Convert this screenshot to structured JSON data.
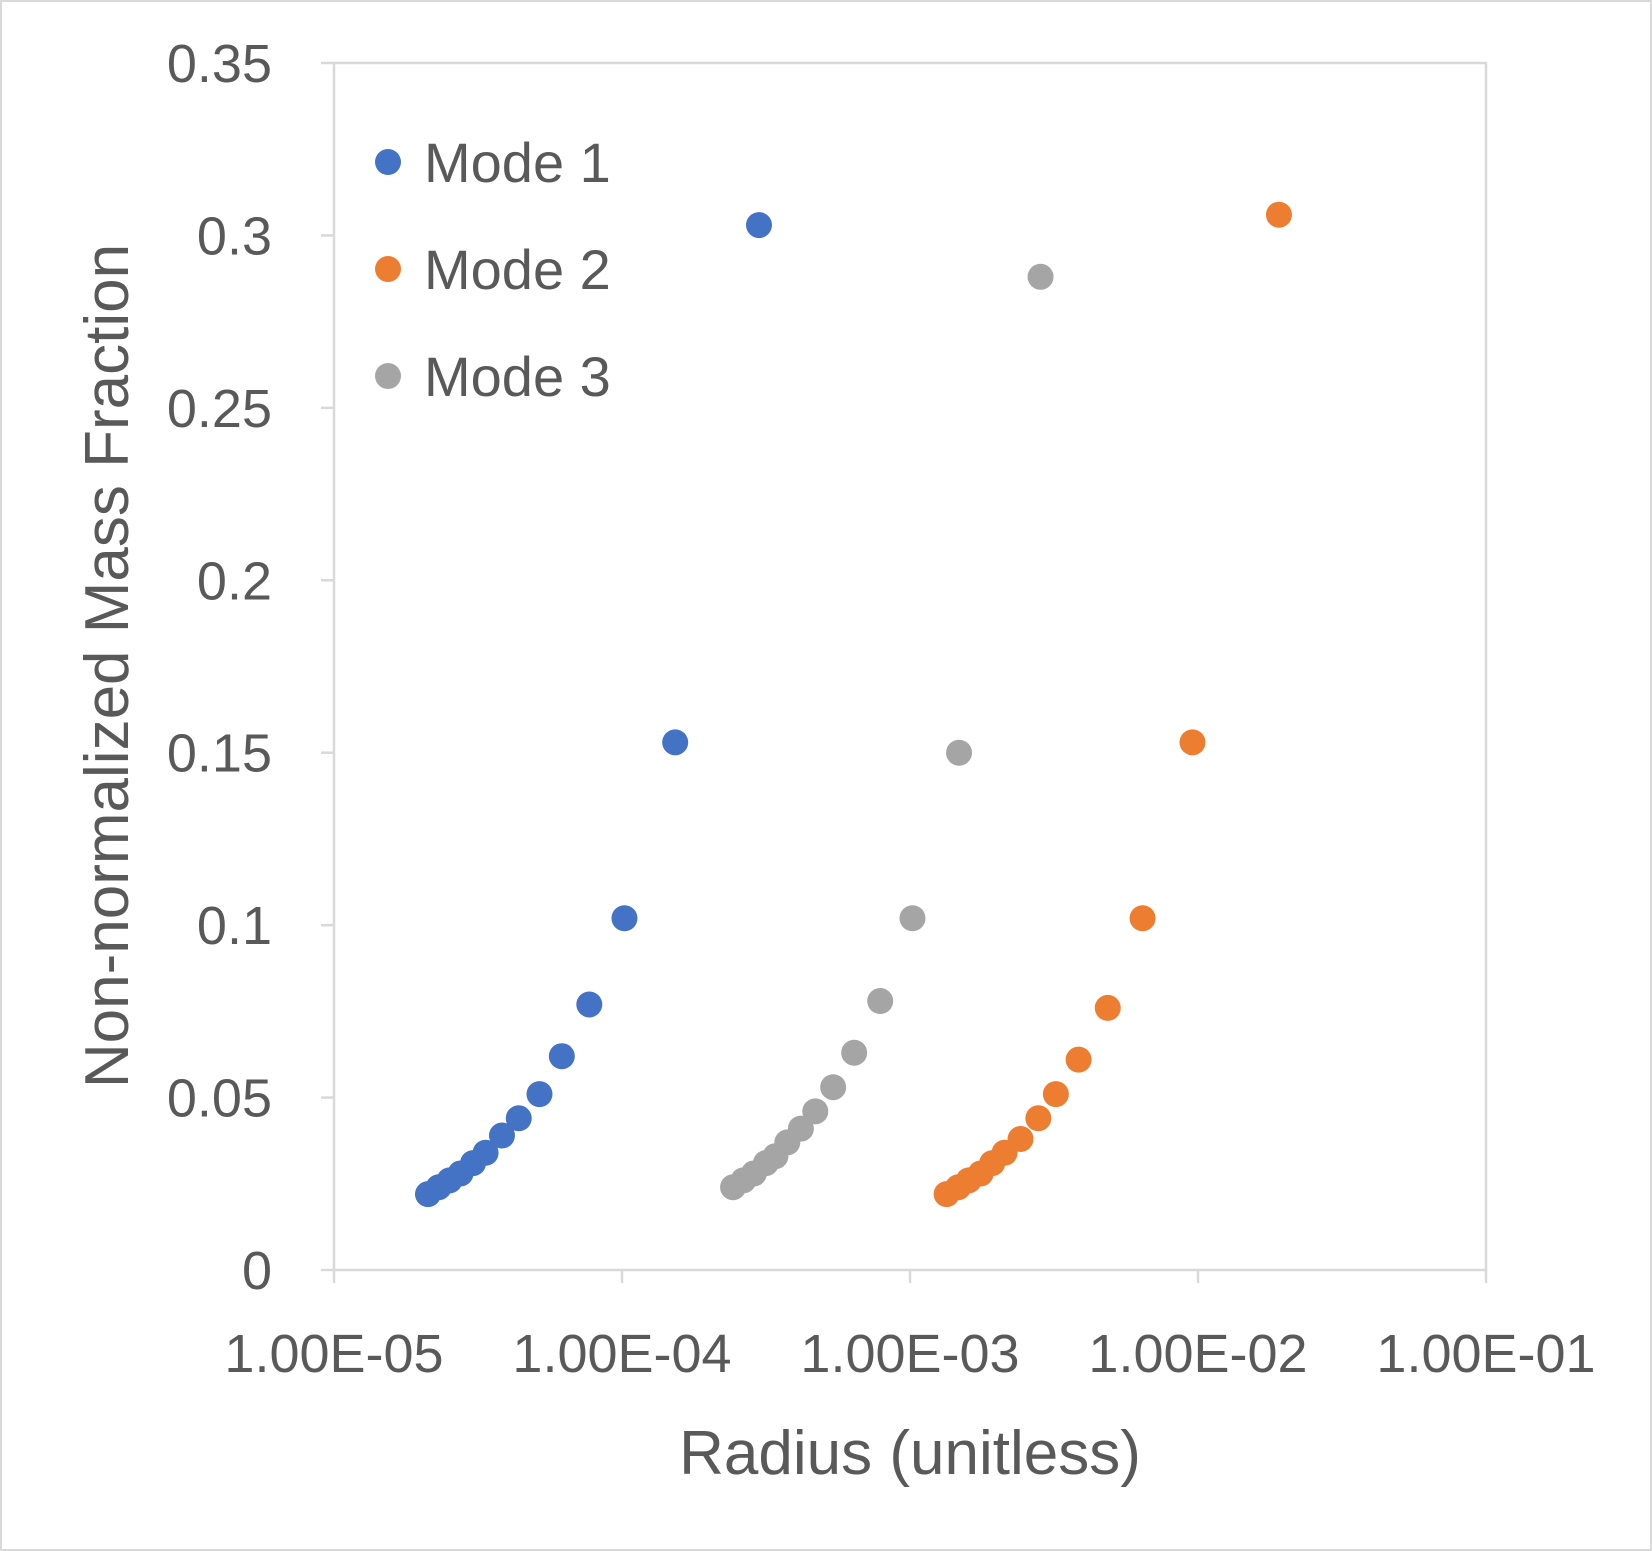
{
  "chart_data": {
    "type": "scatter",
    "xlabel": "Radius (unitless)",
    "ylabel": "Non-normalized Mass Fraction",
    "x_scale": "log",
    "xlim": [
      1e-05,
      0.1
    ],
    "ylim": [
      0,
      0.35
    ],
    "x_ticks": [
      1e-05,
      0.0001,
      0.001,
      0.01,
      0.1
    ],
    "x_tick_labels": [
      "1.00E-05",
      "1.00E-04",
      "1.00E-03",
      "1.00E-02",
      "1.00E-01"
    ],
    "y_ticks": [
      0,
      0.05,
      0.1,
      0.15,
      0.2,
      0.25,
      0.3,
      0.35
    ],
    "y_tick_labels": [
      "0",
      "0.05",
      "0.1",
      "0.15",
      "0.2",
      "0.25",
      "0.3",
      "0.35"
    ],
    "grid": false,
    "legend": "top-left",
    "series": [
      {
        "name": "Mode 1",
        "color": "#4472C4",
        "points": [
          {
            "x": 2.12e-05,
            "y": 0.022
          },
          {
            "x": 2.31e-05,
            "y": 0.024
          },
          {
            "x": 2.52e-05,
            "y": 0.026
          },
          {
            "x": 2.75e-05,
            "y": 0.028
          },
          {
            "x": 3.04e-05,
            "y": 0.031
          },
          {
            "x": 3.36e-05,
            "y": 0.034
          },
          {
            "x": 3.83e-05,
            "y": 0.039
          },
          {
            "x": 4.38e-05,
            "y": 0.044
          },
          {
            "x": 5.17e-05,
            "y": 0.051
          },
          {
            "x": 6.18e-05,
            "y": 0.062
          },
          {
            "x": 7.7e-05,
            "y": 0.077
          },
          {
            "x": 0.000102,
            "y": 0.102
          },
          {
            "x": 0.000153,
            "y": 0.153
          },
          {
            "x": 0.000299,
            "y": 0.303
          }
        ]
      },
      {
        "name": "Mode 2",
        "color": "#ED7D31",
        "points": [
          {
            "x": 0.00134,
            "y": 0.022
          },
          {
            "x": 0.00147,
            "y": 0.024
          },
          {
            "x": 0.0016,
            "y": 0.026
          },
          {
            "x": 0.00176,
            "y": 0.028
          },
          {
            "x": 0.00193,
            "y": 0.031
          },
          {
            "x": 0.00213,
            "y": 0.034
          },
          {
            "x": 0.00242,
            "y": 0.038
          },
          {
            "x": 0.00279,
            "y": 0.044
          },
          {
            "x": 0.00321,
            "y": 0.051
          },
          {
            "x": 0.00385,
            "y": 0.061
          },
          {
            "x": 0.00486,
            "y": 0.076
          },
          {
            "x": 0.00642,
            "y": 0.102
          },
          {
            "x": 0.00957,
            "y": 0.153
          },
          {
            "x": 0.0191,
            "y": 0.306
          }
        ]
      },
      {
        "name": "Mode 3",
        "color": "#A5A5A5",
        "points": [
          {
            "x": 0.000243,
            "y": 0.024
          },
          {
            "x": 0.000264,
            "y": 0.026
          },
          {
            "x": 0.000287,
            "y": 0.028
          },
          {
            "x": 0.000316,
            "y": 0.031
          },
          {
            "x": 0.000341,
            "y": 0.033
          },
          {
            "x": 0.000375,
            "y": 0.037
          },
          {
            "x": 0.000418,
            "y": 0.041
          },
          {
            "x": 0.000469,
            "y": 0.046
          },
          {
            "x": 0.000541,
            "y": 0.053
          },
          {
            "x": 0.00064,
            "y": 0.063
          },
          {
            "x": 0.000788,
            "y": 0.078
          },
          {
            "x": 0.00102,
            "y": 0.102
          },
          {
            "x": 0.00148,
            "y": 0.15
          },
          {
            "x": 0.00284,
            "y": 0.288
          }
        ]
      }
    ]
  }
}
